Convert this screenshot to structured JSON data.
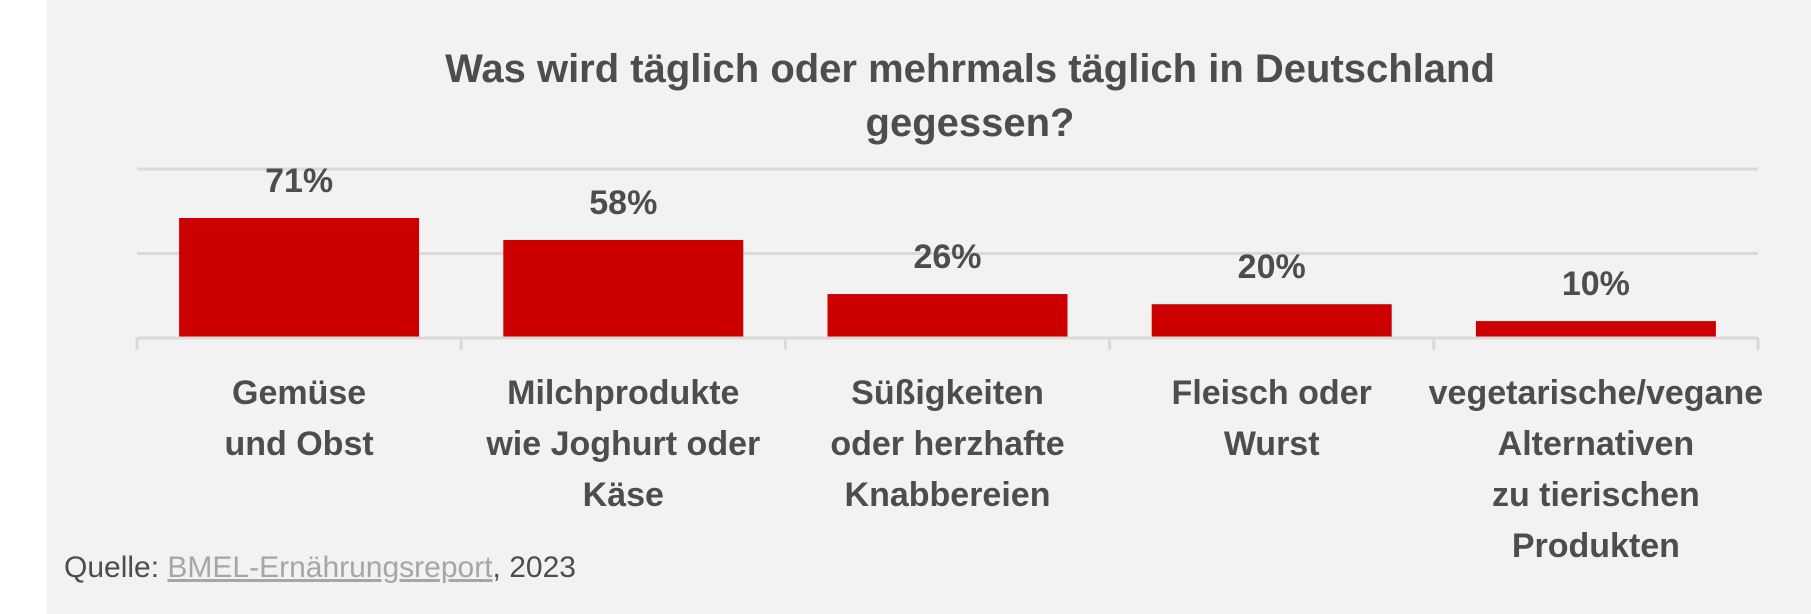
{
  "chart_data": {
    "type": "bar",
    "title": "Was wird täglich oder mehrmals täglich in Deutschland gegessen?",
    "title_lines": [
      "Was wird täglich oder mehrmals täglich in Deutschland",
      "gegessen?"
    ],
    "categories": [
      [
        "Gemüse",
        "und Obst"
      ],
      [
        "Milchprodukte",
        "wie Joghurt oder",
        "Käse"
      ],
      [
        "Süßigkeiten",
        "oder herzhafte",
        "Knabbereien"
      ],
      [
        "Fleisch oder",
        "Wurst"
      ],
      [
        "vegetarische/vegane",
        "Alternativen",
        "zu tierischen",
        "Produkten"
      ]
    ],
    "values": [
      71,
      58,
      26,
      20,
      10
    ],
    "value_labels": [
      "71%",
      "58%",
      "26%",
      "20%",
      "10%"
    ],
    "xlabel": "",
    "ylabel": "",
    "ylim": [
      0,
      100
    ],
    "gridlines": [
      50,
      100
    ],
    "grid": true,
    "legend": "none",
    "bar_color": "#cc0000",
    "text_color": "#4d4d4d"
  },
  "source": {
    "prefix": "Quelle: ",
    "link_text": "BMEL-Ernährungsreport",
    "suffix": ", 2023"
  }
}
